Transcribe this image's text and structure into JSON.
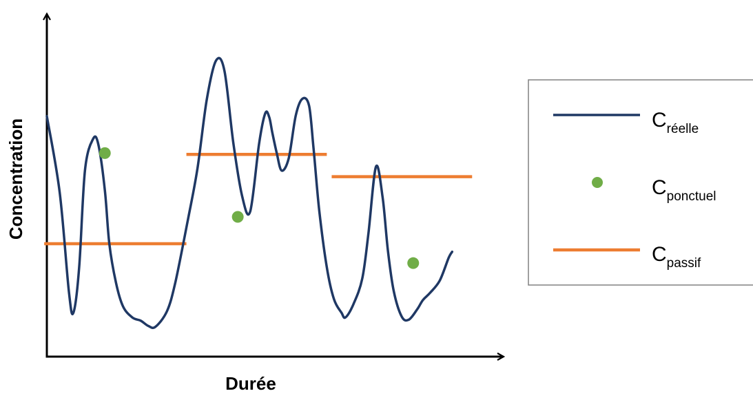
{
  "axes": {
    "x_label": "Durée",
    "y_label": "Concentration"
  },
  "colors": {
    "reelle": "#1f3864",
    "ponctuel": "#70ad47",
    "passif": "#ed7d31",
    "axis": "#000000",
    "legend_border": "#808080"
  },
  "legend": {
    "items": [
      {
        "base": "C",
        "sub": "réelle",
        "marker": "line",
        "color": "#1f3864"
      },
      {
        "base": "C",
        "sub": "ponctuel",
        "marker": "dot",
        "color": "#70ad47"
      },
      {
        "base": "C",
        "sub": "passif",
        "marker": "line",
        "color": "#ed7d31"
      }
    ]
  },
  "chart_data": {
    "type": "line",
    "xlim": [
      0,
      100
    ],
    "ylim": [
      0,
      100
    ],
    "series": [
      {
        "kind": "line",
        "x": [
          0.0,
          2.9,
          5.0,
          6.0,
          7.3,
          8.6,
          10.4,
          11.6,
          13.1,
          14.1,
          15.6,
          17.2,
          19.3,
          21.2,
          22.9,
          24.5,
          27.1,
          29.0,
          31.8,
          34.0,
          36.1,
          38.2,
          40.1,
          42.1,
          44.1,
          45.9,
          47.9,
          49.3,
          50.2,
          50.9,
          51.9,
          53.0,
          54.6,
          56.2,
          57.7,
          59.2,
          60.2,
          61.5,
          63.2,
          64.8,
          66.5,
          67.4,
          69.2,
          71.2,
          72.6,
          74.3,
          75.8,
          77.0,
          78.3,
          80.1,
          81.7,
          83.6,
          84.9,
          86.5,
          88.7,
          90.7,
          91.5
        ],
        "y": [
          74.3,
          50.8,
          19.7,
          13.6,
          27.6,
          57.5,
          67.2,
          65.7,
          51.4,
          34.9,
          22.9,
          15.5,
          12.1,
          11.1,
          9.5,
          9.2,
          14.0,
          22.9,
          42.0,
          58.1,
          79.4,
          91.5,
          88.3,
          66.0,
          49.5,
          44.8,
          65.7,
          75.2,
          74.0,
          69.2,
          62.9,
          57.5,
          61.3,
          74.6,
          79.7,
          77.5,
          64.4,
          45.1,
          27.6,
          17.8,
          13.6,
          12.1,
          16.2,
          24.1,
          38.1,
          58.7,
          49.2,
          32.7,
          20.3,
          12.4,
          11.4,
          14.6,
          17.5,
          19.7,
          23.5,
          30.5,
          32.4
        ],
        "smooth": true
      },
      {
        "kind": "points",
        "x": [
          13.1,
          43.1,
          82.7
        ],
        "y": [
          62.9,
          43.2,
          28.9
        ]
      },
      {
        "kind": "segments",
        "segments": [
          {
            "x0": -0.6,
            "x1": 31.5,
            "y": 34.9
          },
          {
            "x0": 31.5,
            "x1": 63.2,
            "y": 62.5
          },
          {
            "x0": 64.3,
            "x1": 96.0,
            "y": 55.6
          }
        ]
      }
    ]
  }
}
